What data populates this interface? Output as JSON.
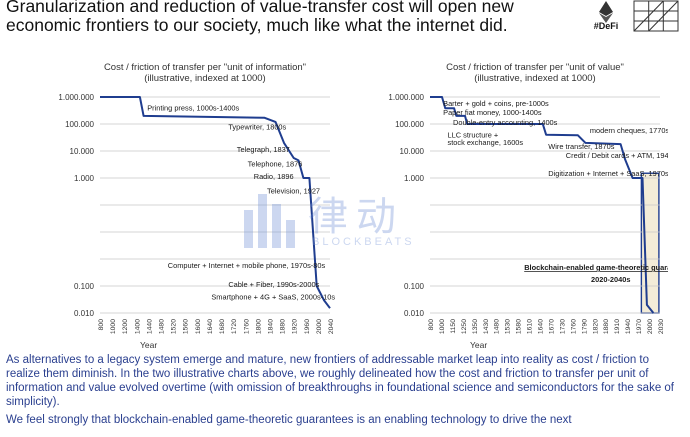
{
  "headline": {
    "line1": "Granularization and reduction of value-transfer cost will open new",
    "line2": "economic frontiers to our society, much like what the internet did."
  },
  "logos": {
    "defi_label": "#DeFi"
  },
  "watermark": {
    "chinese": "律动",
    "english": "BLOCKBEATS"
  },
  "chart_data": [
    {
      "type": "line",
      "title": "Cost / friction of transfer per \"unit of information\"",
      "subtitle": "(illustrative, indexed at 1000)",
      "xlabel": "Year",
      "ylabel": "",
      "yscale": "log",
      "ylim": [
        0.01,
        1000000
      ],
      "xlim": [
        800,
        2040
      ],
      "y_tick_labels": [
        "1.000.000",
        "100.000",
        "10.000",
        "1.000",
        "0.100",
        "0.010"
      ],
      "y_tick_values": [
        1000000,
        100000,
        10000,
        1000,
        0.1,
        0.01
      ],
      "x_tick_labels": [
        "800",
        "1000",
        "1200",
        "1400",
        "1440",
        "1480",
        "1520",
        "1560",
        "1600",
        "1640",
        "1680",
        "1720",
        "1760",
        "1800",
        "1840",
        "1880",
        "1920",
        "1960",
        "2000",
        "2040"
      ],
      "series": [
        {
          "name": "",
          "points": [
            [
              0,
              1000000
            ],
            [
              3.3,
              1000000
            ],
            [
              3.6,
              200000
            ],
            [
              13.6,
              170000
            ],
            [
              14.5,
              120000
            ],
            [
              15.2,
              20000
            ],
            [
              16,
              5500
            ],
            [
              16.4,
              4500
            ],
            [
              16.8,
              1000
            ],
            [
              17.3,
              1000
            ],
            [
              17.9,
              0.1
            ],
            [
              18.5,
              0.03
            ],
            [
              19,
              0.015
            ]
          ]
        }
      ],
      "annotations": [
        {
          "text": "Printing press, 1000s-1400s",
          "at": [
            3.9,
            400000
          ]
        },
        {
          "text": "Typewriter, 1800s",
          "at": [
            10.6,
            80000
          ]
        },
        {
          "text": "Telegraph, 1837",
          "at": [
            11.3,
            12000
          ]
        },
        {
          "text": "Telephone, 1876",
          "at": [
            12.2,
            3500
          ]
        },
        {
          "text": "Radio, 1896",
          "at": [
            12.7,
            1200
          ]
        },
        {
          "text": "Television, 1927",
          "at": [
            13.8,
            350
          ]
        },
        {
          "text": "Computer + Internet + mobile phone, 1970s-80s",
          "at": [
            5.6,
            0.6
          ]
        },
        {
          "text": "Cable + Fiber, 1990s-2000s",
          "at": [
            10.6,
            0.12
          ]
        },
        {
          "text": "Smartphone + 4G + SaaS, 2000s-10s",
          "at": [
            9.2,
            0.04
          ]
        }
      ]
    },
    {
      "type": "line",
      "title": "Cost / friction of transfer per \"unit of value\"",
      "subtitle": "(illustrative, indexed at 1000)",
      "xlabel": "Year",
      "ylabel": "",
      "yscale": "log",
      "ylim": [
        0.01,
        1000000
      ],
      "xlim": [
        800,
        2040
      ],
      "y_tick_labels": [
        "1.000.000",
        "100.000",
        "10.000",
        "1.000",
        "0.100",
        "0.010"
      ],
      "y_tick_values": [
        1000000,
        100000,
        10000,
        1000,
        0.1,
        0.01
      ],
      "x_tick_labels": [
        "800",
        "1000",
        "1150",
        "1250",
        "1350",
        "1430",
        "1480",
        "1530",
        "1580",
        "1610",
        "1640",
        "1670",
        "1730",
        "1760",
        "1790",
        "1820",
        "1880",
        "1910",
        "1940",
        "1970",
        "2000",
        "2030"
      ],
      "series": [
        {
          "name": "",
          "points": [
            [
              0,
              1000000
            ],
            [
              1.1,
              1000000
            ],
            [
              1.4,
              380000
            ],
            [
              2.2,
              380000
            ],
            [
              2.4,
              200000
            ],
            [
              3.2,
              200000
            ],
            [
              3.4,
              100000
            ],
            [
              10.3,
              100000
            ],
            [
              10.6,
              40000
            ],
            [
              13.5,
              38000
            ],
            [
              14.2,
              20000
            ],
            [
              17.4,
              18000
            ],
            [
              17.8,
              5000
            ],
            [
              18.5,
              1000
            ],
            [
              19.4,
              1000
            ],
            [
              19.8,
              0.02
            ],
            [
              20.4,
              0.01
            ]
          ]
        }
      ],
      "annotations": [
        {
          "text": "Barter + gold + coins, pre-1000s",
          "at": [
            1.2,
            600000
          ]
        },
        {
          "text": "Paper fiat money, 1000-1400s",
          "at": [
            1.2,
            280000
          ]
        },
        {
          "text": "Double-entry accounting, 1400s",
          "at": [
            2.1,
            120000
          ]
        },
        {
          "text": "modern cheques, 1770s",
          "at": [
            14.6,
            60000
          ]
        },
        {
          "text": "LLC structure +",
          "at": [
            1.6,
            40000
          ]
        },
        {
          "text": "stock exchange, 1600s",
          "at": [
            1.6,
            22000
          ]
        },
        {
          "text": "Wire transfer, 1870s",
          "at": [
            10.8,
            15000
          ]
        },
        {
          "text": "Credit / Debit cards + ATM, 1940-60s",
          "at": [
            12.4,
            7000
          ]
        },
        {
          "text": "Digitization + Internet + SaaS, 1970s - 2010s",
          "at": [
            10.8,
            1500
          ]
        },
        {
          "text": "Blockchain-enabled game-theoretic guarantees",
          "at": [
            8.6,
            0.5
          ],
          "bold": true,
          "underline": true
        },
        {
          "text": "2020-2040s",
          "at": [
            14.7,
            0.18
          ],
          "bold": true
        }
      ]
    }
  ],
  "body": {
    "paragraph1": "As alternatives to a legacy system emerge and mature, new frontiers of addressable market leap into reality as cost / friction to realize them diminish. In the two illustrative charts above, we roughly delineated how the cost and friction to transfer per unit of information and value evolved overtime (with omission of breakthroughs in foundational science and semiconductors for the sake of simplicity).",
    "paragraph2": "We feel strongly that blockchain-enabled game-theoretic guarantees is an enabling technology to drive the next"
  },
  "colors": {
    "line": "#1f3d8f",
    "grid": "#c9c9c9",
    "axis_text": "#333333",
    "body_text": "#2a3f8f",
    "highlight_fill": "#f3ecd8",
    "highlight_border": "#1f3d8f"
  }
}
